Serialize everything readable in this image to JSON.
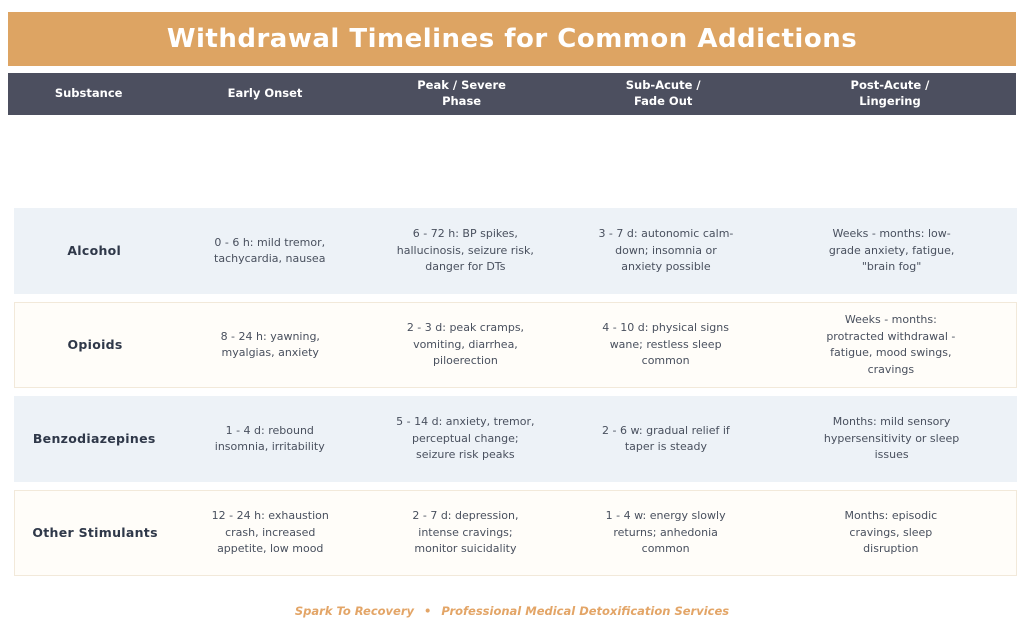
{
  "title": "Withdrawal Timelines for Common Addictions",
  "colors": {
    "banner_bg": "#dda463",
    "header_bg": "#4c4f5f",
    "header_text": "#ffffff",
    "row_alt_bg": "#edf2f7",
    "row_plain_bg": "#fffdf9",
    "substance_text": "#2f3849",
    "cell_text": "#49505e",
    "footer_text": "#e3a567"
  },
  "table": {
    "headers": [
      "Substance",
      "Early Onset",
      "Peak / Severe\nPhase",
      "Sub-Acute /\nFade Out",
      "Post-Acute /\nLingering"
    ],
    "rows": [
      {
        "cells": [
          "Alcohol",
          "0 - 6 h: mild tremor, tachycardia, nausea",
          "6 - 72 h: BP spikes, hallucinosis, seizure risk, danger for DTs",
          "3 - 7 d: autonomic calm-down; insomnia or anxiety possible",
          "Weeks - months: low-grade anxiety, fatigue, \"brain fog\""
        ]
      },
      {
        "cells": [
          "Opioids",
          "8 - 24 h: yawning, myalgias, anxiety",
          "2 - 3 d: peak cramps, vomiting, diarrhea, piloerection",
          "4 - 10 d: physical signs wane; restless sleep common",
          "Weeks - months: protracted withdrawal - fatigue, mood swings, cravings"
        ]
      },
      {
        "cells": [
          "Benzodiazepines",
          "1 - 4 d: rebound insomnia, irritability",
          "5 - 14 d: anxiety, tremor, perceptual change; seizure risk peaks",
          "2 - 6 w: gradual relief if taper is steady",
          "Months: mild sensory hypersensitivity or sleep issues"
        ]
      },
      {
        "cells": [
          "Other Stimulants",
          "12 - 24 h: exhaustion crash, increased appetite, low mood",
          "2 - 7 d: depression, intense cravings; monitor suicidality",
          "1 - 4 w: energy slowly returns; anhedonia common",
          "Months: episodic cravings, sleep disruption"
        ]
      }
    ]
  },
  "footer": {
    "brand": "Spark To Recovery",
    "separator": "•",
    "tagline": "Professional Medical Detoxification Services"
  },
  "chart_data": {
    "type": "table",
    "title": "Withdrawal Timelines for Common Addictions",
    "columns": [
      "Substance",
      "Early Onset",
      "Peak / Severe Phase",
      "Sub-Acute / Fade Out",
      "Post-Acute / Lingering"
    ],
    "rows": [
      [
        "Alcohol",
        "0 - 6 h: mild tremor, tachycardia, nausea",
        "6 - 72 h: BP spikes, hallucinosis, seizure risk, danger for DTs",
        "3 - 7 d: autonomic calm-down; insomnia or anxiety possible",
        "Weeks - months: low-grade anxiety, fatigue, \"brain fog\""
      ],
      [
        "Opioids",
        "8 - 24 h: yawning, myalgias, anxiety",
        "2 - 3 d: peak cramps, vomiting, diarrhea, piloerection",
        "4 - 10 d: physical signs wane; restless sleep common",
        "Weeks - months: protracted withdrawal - fatigue, mood swings, cravings"
      ],
      [
        "Benzodiazepines",
        "1 - 4 d: rebound insomnia, irritability",
        "5 - 14 d: anxiety, tremor, perceptual change; seizure risk peaks",
        "2 - 6 w: gradual relief if taper is steady",
        "Months: mild sensory hypersensitivity or sleep issues"
      ],
      [
        "Other Stimulants",
        "12 - 24 h: exhaustion crash, increased appetite, low mood",
        "2 - 7 d: depression, intense cravings; monitor suicidality",
        "1 - 4 w: energy slowly returns; anhedonia common",
        "Months: episodic cravings, sleep disruption"
      ]
    ],
    "footer": "Spark To Recovery • Professional Medical Detoxification Services",
    "layout": {
      "row_striping": [
        "light-blue",
        "white",
        "light-blue",
        "white"
      ],
      "header_style": "dark-slate-bar",
      "title_style": "orange-banner"
    }
  }
}
